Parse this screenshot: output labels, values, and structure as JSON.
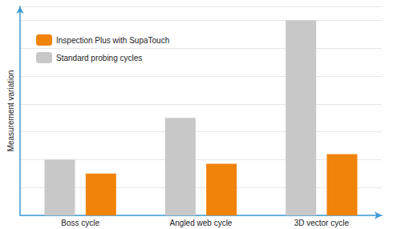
{
  "chart_data": {
    "type": "bar",
    "categories": [
      "Boss cycle",
      "Angled web cycle",
      "3D vector cycle"
    ],
    "series": [
      {
        "name": "Standard probing cycles",
        "color": "#c8c8c8",
        "values": [
          2,
          3.5,
          7
        ]
      },
      {
        "name": "Inspection Plus with SupaTouch",
        "color": "#f08308",
        "values": [
          1.5,
          1.85,
          2.2
        ]
      }
    ],
    "y_label": "Measurement variation",
    "ylim": [
      0,
      7.5
    ],
    "yticks": [
      0,
      1,
      2,
      3,
      4,
      5,
      6,
      7
    ],
    "grid": true,
    "legend": "top-left",
    "tick_labels": "x"
  }
}
